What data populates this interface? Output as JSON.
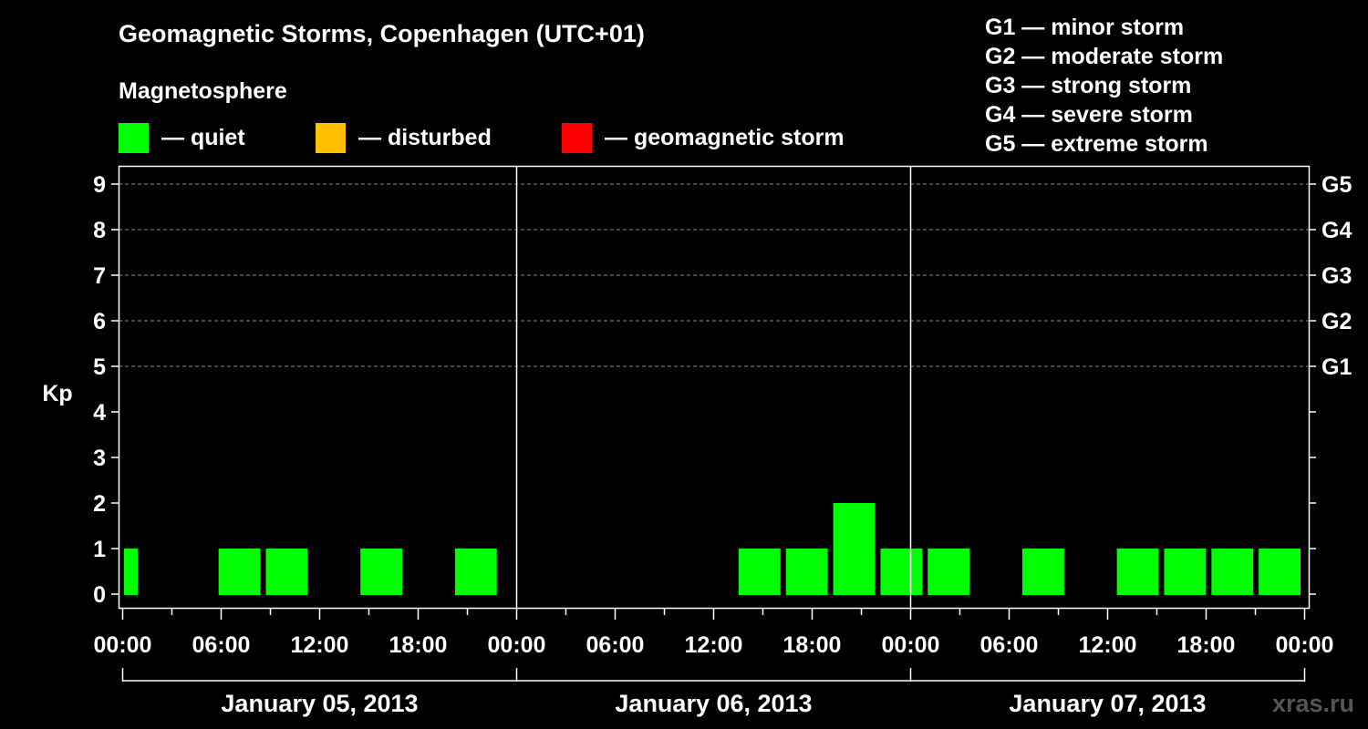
{
  "title": "Geomagnetic Storms, Copenhagen (UTC+01)",
  "magnetosphere": {
    "heading": "Magnetosphere",
    "items": [
      {
        "label": "— quiet",
        "color": "#00ff00"
      },
      {
        "label": "— disturbed",
        "color": "#ffc000"
      },
      {
        "label": "— geomagnetic storm",
        "color": "#ff0000"
      }
    ]
  },
  "storm_levels": [
    "G1 — minor storm",
    "G2 — moderate storm",
    "G3 — strong storm",
    "G4 — severe storm",
    "G5 — extreme storm"
  ],
  "watermark": "xras.ru",
  "chart_data": {
    "type": "bar",
    "ylabel": "Kp",
    "ylim": [
      0,
      9
    ],
    "y_ticks": [
      0,
      1,
      2,
      3,
      4,
      5,
      6,
      7,
      8,
      9
    ],
    "right_axis_labels": [
      {
        "kp": 5,
        "label": "G1"
      },
      {
        "kp": 6,
        "label": "G2"
      },
      {
        "kp": 7,
        "label": "G3"
      },
      {
        "kp": 8,
        "label": "G4"
      },
      {
        "kp": 9,
        "label": "G5"
      }
    ],
    "grid": "dashed horizontal at Kp 5-9",
    "x_tick_labels": [
      "00:00",
      "06:00",
      "12:00",
      "18:00",
      "00:00",
      "06:00",
      "12:00",
      "18:00",
      "00:00",
      "06:00",
      "12:00",
      "18:00",
      "00:00"
    ],
    "days": [
      "January 05, 2013",
      "January 06, 2013",
      "January 07, 2013"
    ],
    "interval_hours": 3,
    "values": [
      1,
      0,
      1,
      1,
      0,
      1,
      0,
      1,
      0,
      0,
      0,
      0,
      0,
      1,
      1,
      2,
      1,
      1,
      0,
      1,
      0,
      1,
      1,
      1,
      1
    ],
    "series_color": "#00ff00"
  }
}
